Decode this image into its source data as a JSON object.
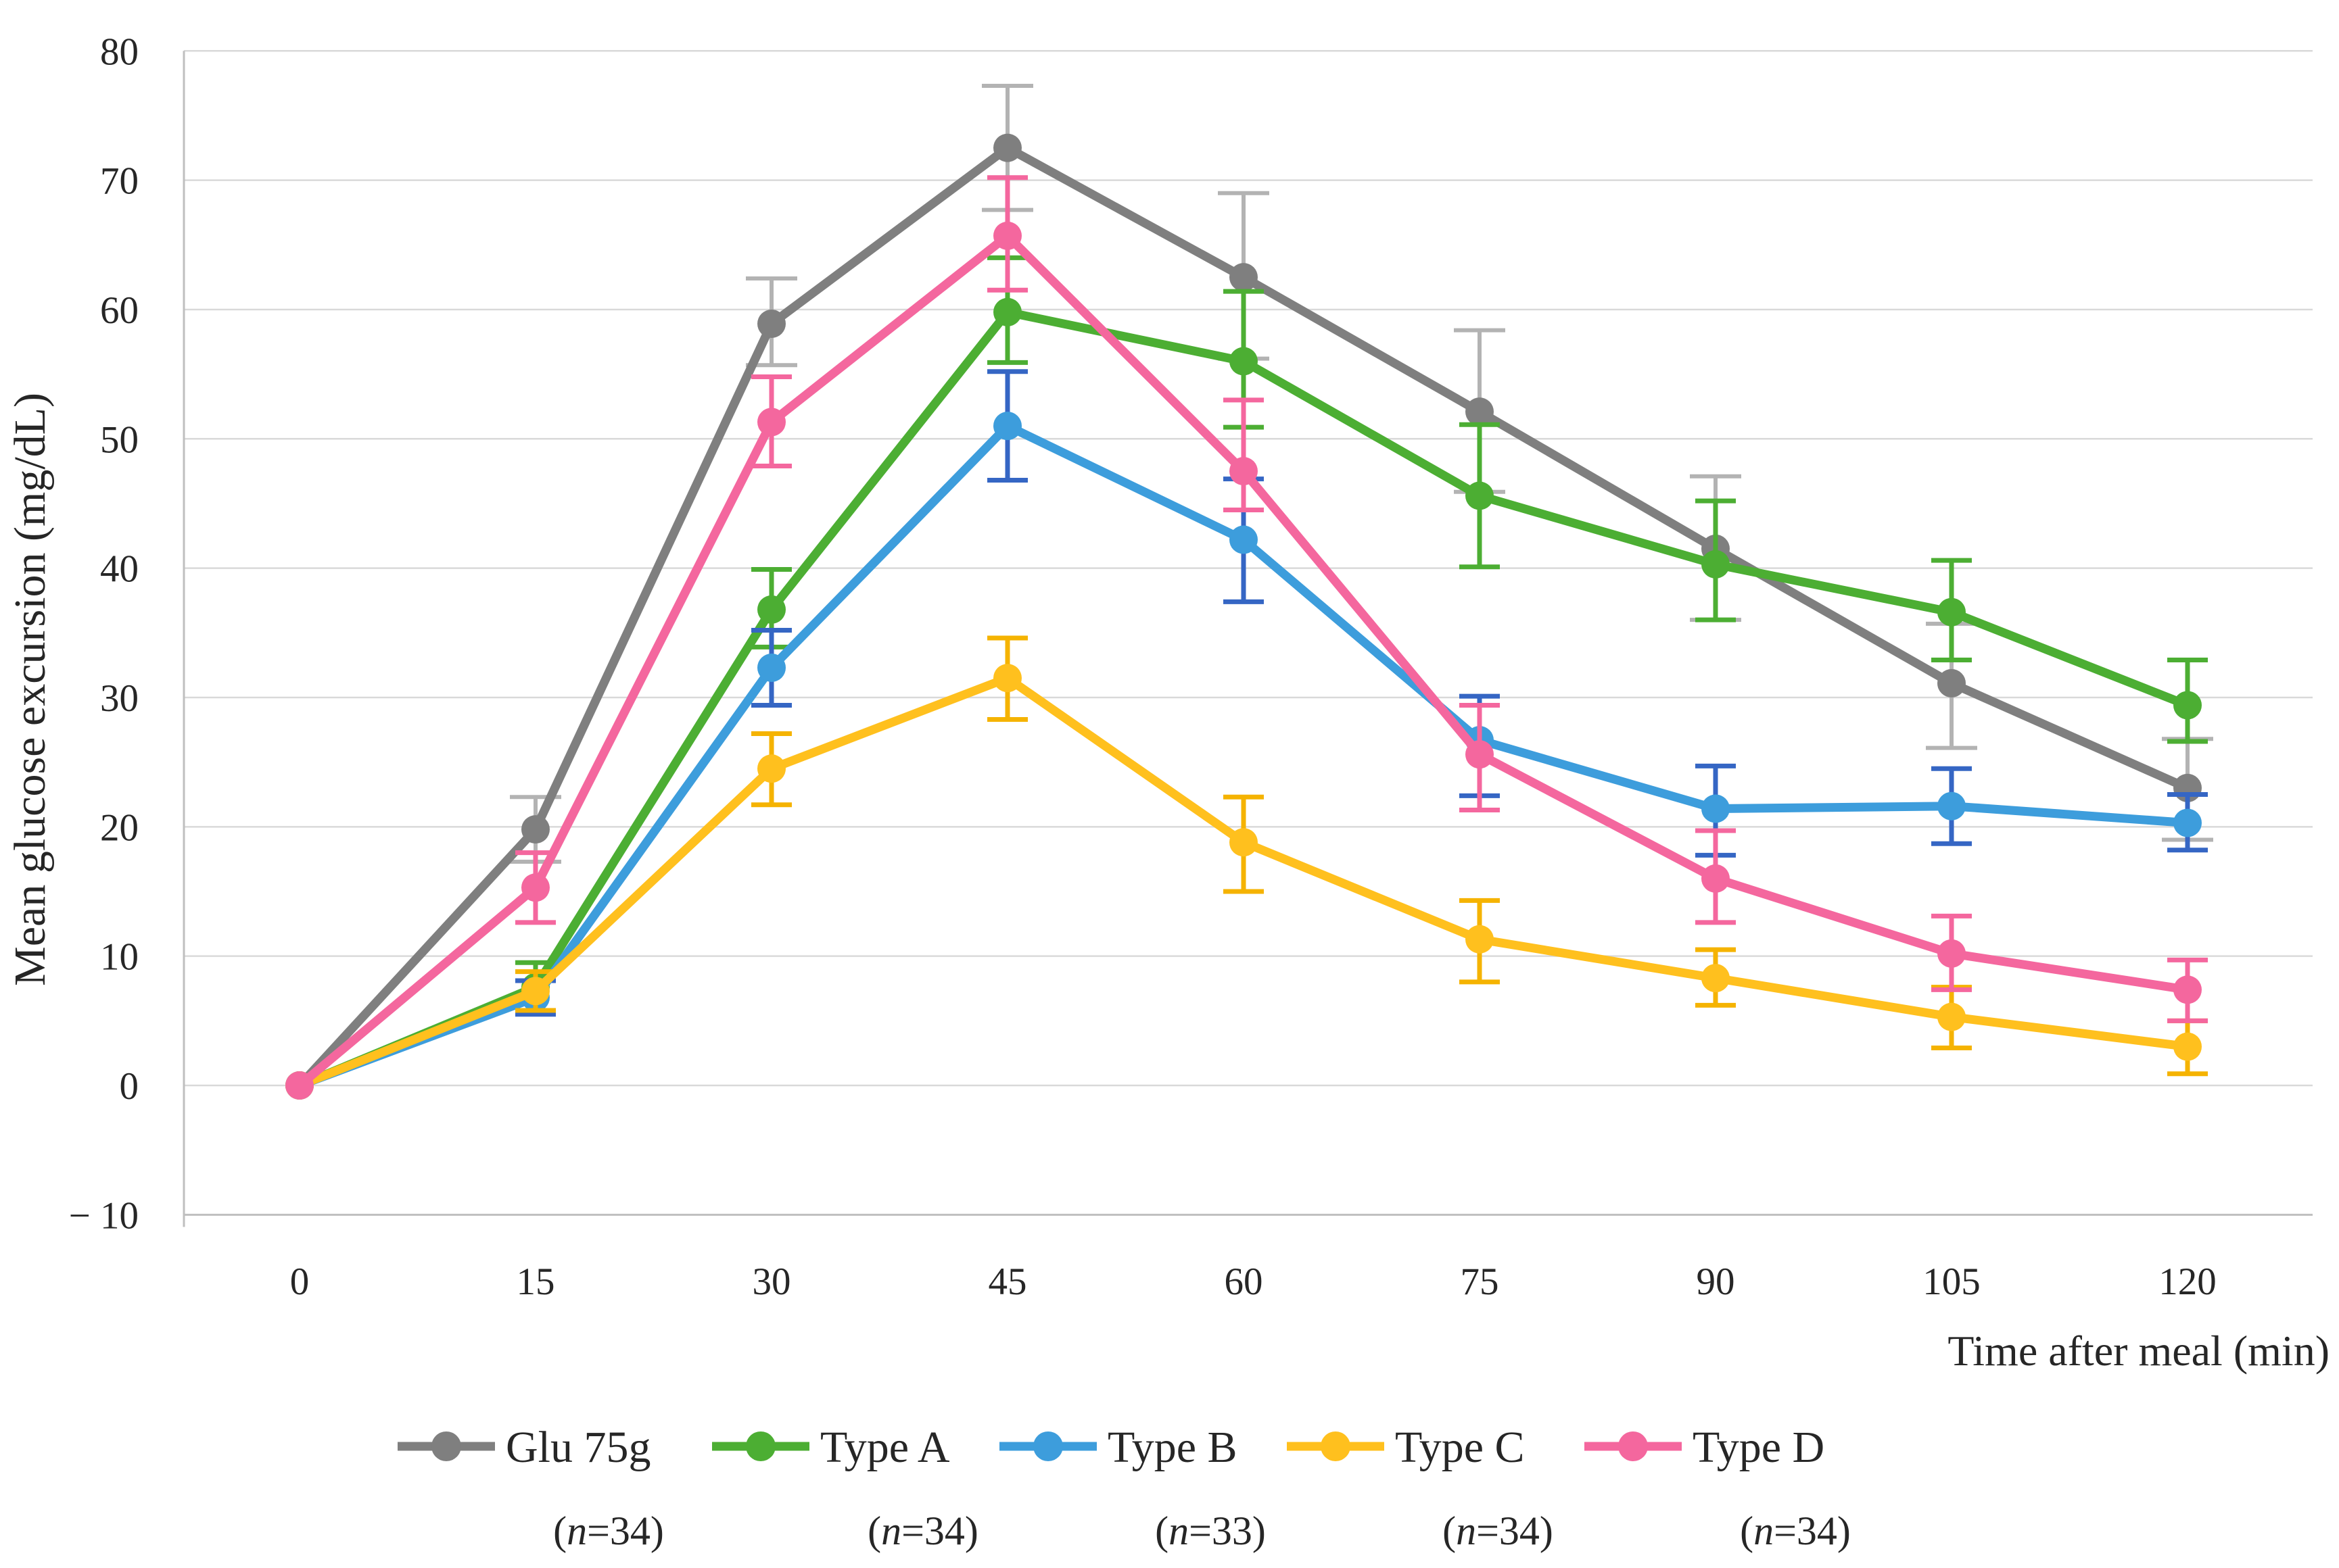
{
  "figure": {
    "y_axis_title": "Mean glucose excursion (mg/dL)",
    "x_axis_title": "Time after meal (min)"
  },
  "chart_data": {
    "type": "line",
    "title": "",
    "xlabel": "Time after meal (min)",
    "ylabel": "Mean glucose excursion (mg/dL)",
    "x": [
      0,
      15,
      30,
      45,
      60,
      75,
      90,
      105,
      120
    ],
    "x_tick_labels": [
      "0",
      "15",
      "30",
      "45",
      "60",
      "75",
      "90",
      "105",
      "120"
    ],
    "y_tick_labels": [
      "80",
      "70",
      "60",
      "50",
      "40",
      "30",
      "20",
      "10",
      "0",
      "− 10"
    ],
    "ylim": [
      -10,
      80
    ],
    "y_tick_step": 10,
    "grid": "horizontal",
    "legend_position": "bottom",
    "error_bars": true,
    "colors": {
      "gridline": "#D9D9D9",
      "axis": "#BFBFBF",
      "text": "#262626",
      "background": "#FFFFFF"
    },
    "series": [
      {
        "name": "Glu 75g",
        "n_parts": [
          "(",
          "n",
          "=34)"
        ],
        "color": "#7F7F7F",
        "error_color": "#B3B3B3",
        "values": [
          0,
          19.8,
          58.9,
          72.5,
          62.5,
          52.1,
          41.5,
          31.1,
          23.0
        ],
        "upper": [
          0,
          22.3,
          62.4,
          77.3,
          69.0,
          58.4,
          47.1,
          35.7,
          26.8
        ],
        "lower": [
          0,
          17.3,
          55.7,
          67.7,
          56.2,
          45.9,
          36.0,
          26.1,
          19.0
        ]
      },
      {
        "name": "Type A",
        "n_parts": [
          "(",
          "n",
          "=34)"
        ],
        "color": "#4CAE33",
        "error_color": "#4CAE33",
        "values": [
          0,
          7.6,
          36.8,
          59.8,
          56.0,
          45.6,
          40.3,
          36.6,
          29.4
        ],
        "upper": [
          0,
          9.5,
          39.9,
          64.0,
          61.4,
          51.1,
          45.2,
          40.6,
          32.9
        ],
        "lower": [
          0,
          5.8,
          33.9,
          55.9,
          50.9,
          40.1,
          36.0,
          32.9,
          26.6
        ]
      },
      {
        "name": "Type B",
        "n_parts": [
          "(",
          "n",
          "=33)"
        ],
        "color": "#3D9DDC",
        "error_color": "#3566C4",
        "values": [
          0,
          6.8,
          32.3,
          51.0,
          42.2,
          26.7,
          21.4,
          21.6,
          20.3
        ],
        "upper": [
          0,
          8.1,
          35.2,
          55.2,
          46.9,
          30.1,
          24.7,
          24.5,
          22.5
        ],
        "lower": [
          0,
          5.5,
          29.4,
          46.8,
          37.4,
          22.4,
          17.8,
          18.7,
          18.2
        ]
      },
      {
        "name": "Type C",
        "n_parts": [
          "(",
          "n",
          "=34)"
        ],
        "color": "#FFC01E",
        "error_color": "#F5B301",
        "values": [
          0,
          7.3,
          24.5,
          31.5,
          18.8,
          11.3,
          8.3,
          5.3,
          3.0
        ],
        "upper": [
          0,
          8.8,
          27.2,
          34.6,
          22.3,
          14.3,
          10.5,
          7.6,
          5.0
        ],
        "lower": [
          0,
          5.8,
          21.7,
          28.3,
          15.0,
          8.0,
          6.2,
          2.9,
          0.9
        ]
      },
      {
        "name": "Type D",
        "n_parts": [
          "(",
          "n",
          "=34)"
        ],
        "color": "#F4679E",
        "error_color": "#F4679E",
        "values": [
          0,
          15.3,
          51.3,
          65.7,
          47.5,
          25.6,
          16.0,
          10.2,
          7.4
        ],
        "upper": [
          0,
          18.0,
          54.8,
          70.2,
          53.0,
          29.4,
          19.7,
          13.1,
          9.7
        ],
        "lower": [
          0,
          12.6,
          47.9,
          61.5,
          44.5,
          21.3,
          12.6,
          7.4,
          5.0
        ]
      }
    ]
  }
}
